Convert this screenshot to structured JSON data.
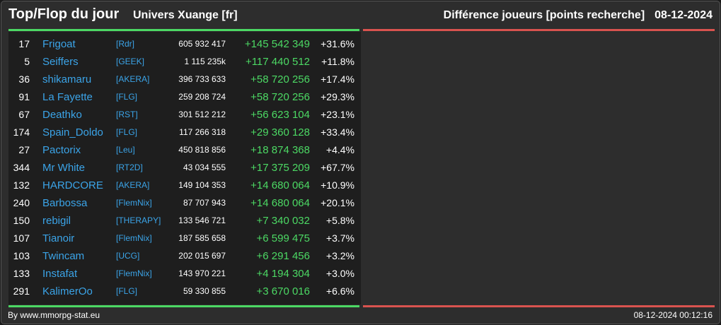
{
  "header": {
    "title": "Top/Flop du jour",
    "universe": "Univers Xuange [fr]",
    "subtitle": "Différence joueurs [points recherche]",
    "date": "08-12-2024"
  },
  "colors": {
    "accent_positive": "#4cd964",
    "accent_negative": "#d9534f",
    "link": "#3ba4e8"
  },
  "top_rows": [
    {
      "rank": "17",
      "name": "Frigoat",
      "alliance": "[Rdr]",
      "points": "605 932 417",
      "diff": "+145 542 349",
      "pct": "+31.6%"
    },
    {
      "rank": "5",
      "name": "Seiffers",
      "alliance": "[GEEK]",
      "points": "1 115 235k",
      "diff": "+117 440 512",
      "pct": "+11.8%"
    },
    {
      "rank": "36",
      "name": "shikamaru",
      "alliance": "[AKERA]",
      "points": "396 733 633",
      "diff": "+58 720 256",
      "pct": "+17.4%"
    },
    {
      "rank": "91",
      "name": "La Fayette",
      "alliance": "[FLG]",
      "points": "259 208 724",
      "diff": "+58 720 256",
      "pct": "+29.3%"
    },
    {
      "rank": "67",
      "name": "Deathko",
      "alliance": "[RST]",
      "points": "301 512 212",
      "diff": "+56 623 104",
      "pct": "+23.1%"
    },
    {
      "rank": "174",
      "name": "Spain_Doldo",
      "alliance": "[FLG]",
      "points": "117 266 318",
      "diff": "+29 360 128",
      "pct": "+33.4%"
    },
    {
      "rank": "27",
      "name": "Pactorix",
      "alliance": "[Leu]",
      "points": "450 818 856",
      "diff": "+18 874 368",
      "pct": "+4.4%"
    },
    {
      "rank": "344",
      "name": "Mr White",
      "alliance": "[RT2D]",
      "points": "43 034 555",
      "diff": "+17 375 209",
      "pct": "+67.7%"
    },
    {
      "rank": "132",
      "name": "HARDCORE",
      "alliance": "[AKERA]",
      "points": "149 104 353",
      "diff": "+14 680 064",
      "pct": "+10.9%"
    },
    {
      "rank": "240",
      "name": "Barbossa",
      "alliance": "[FlemNix]",
      "points": "87 707 943",
      "diff": "+14 680 064",
      "pct": "+20.1%"
    },
    {
      "rank": "150",
      "name": "rebigil",
      "alliance": "[THERAPY]",
      "points": "133 546 721",
      "diff": "+7 340 032",
      "pct": "+5.8%"
    },
    {
      "rank": "107",
      "name": "Tianoir",
      "alliance": "[FlemNix]",
      "points": "187 585 658",
      "diff": "+6 599 475",
      "pct": "+3.7%"
    },
    {
      "rank": "103",
      "name": "Twincam",
      "alliance": "[UCG]",
      "points": "202 015 697",
      "diff": "+6 291 456",
      "pct": "+3.2%"
    },
    {
      "rank": "133",
      "name": "Instafat",
      "alliance": "[FlemNix]",
      "points": "143 970 221",
      "diff": "+4 194 304",
      "pct": "+3.0%"
    },
    {
      "rank": "291",
      "name": "KalimerOo",
      "alliance": "[FLG]",
      "points": "59 330 855",
      "diff": "+3 670 016",
      "pct": "+6.6%"
    }
  ],
  "footer": {
    "credit": "By www.mmorpg-stat.eu",
    "timestamp": "08-12-2024 00:12:16"
  }
}
